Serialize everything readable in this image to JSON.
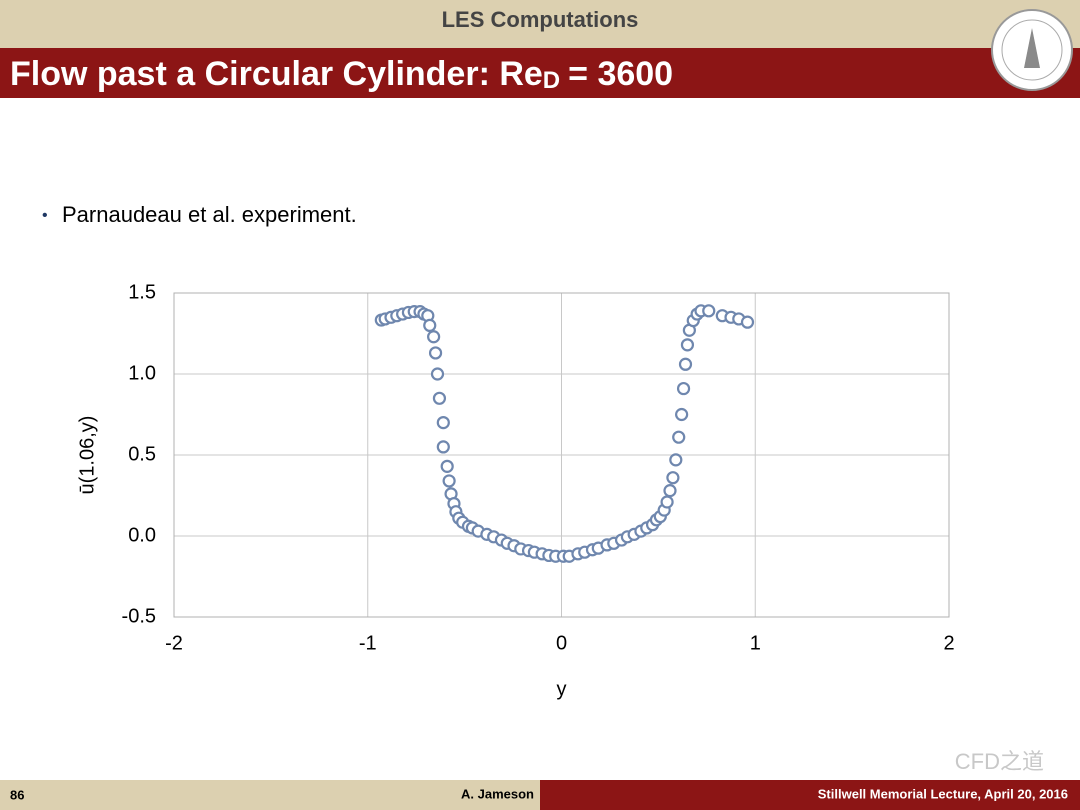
{
  "header": {
    "section": "LES Computations",
    "title_main": "Flow past a Circular Cylinder: Re",
    "title_subscript": "D",
    "title_tail": "= 3600"
  },
  "bullet": "Parnaudeau et al. experiment.",
  "footer": {
    "page": "86",
    "author": "A. Jameson",
    "event": "Stillwell Memorial Lecture, April 20, 2016"
  },
  "watermark": "CFD之道",
  "chart_data": {
    "type": "scatter",
    "x_label": "y",
    "y_label": "ū(1.06,y)",
    "color": "#6f87ae",
    "grid": true,
    "xlim": [
      -2,
      2
    ],
    "xticks": [
      -2,
      -1,
      0,
      1,
      2
    ],
    "ylim": [
      -0.5,
      1.5
    ],
    "yticks": [
      -0.5,
      {
        "value": 0,
        "label": "0.0"
      },
      0.5,
      {
        "value": 1,
        "label": "1.0"
      },
      1.5
    ],
    "x": [
      -0.93,
      -0.91,
      -0.88,
      -0.85,
      -0.82,
      -0.79,
      -0.76,
      -0.73,
      -0.71,
      -0.69,
      -0.68,
      -0.66,
      -0.65,
      -0.64,
      -0.63,
      -0.61,
      -0.61,
      -0.59,
      -0.58,
      -0.57,
      -0.555,
      -0.545,
      -0.53,
      -0.51,
      -0.48,
      -0.46,
      -0.43,
      -0.385,
      -0.35,
      -0.31,
      -0.28,
      -0.245,
      -0.21,
      -0.17,
      -0.14,
      -0.1,
      -0.065,
      -0.03,
      0.01,
      0.04,
      0.085,
      0.12,
      0.16,
      0.19,
      0.235,
      0.27,
      0.31,
      0.34,
      0.375,
      0.41,
      0.44,
      0.47,
      0.49,
      0.51,
      0.53,
      0.545,
      0.56,
      0.575,
      0.59,
      0.605,
      0.62,
      0.63,
      0.64,
      0.65,
      0.66,
      0.68,
      0.7,
      0.72,
      0.76,
      0.83,
      0.875,
      0.915,
      0.96
    ],
    "values": [
      1.333,
      1.34,
      1.35,
      1.36,
      1.37,
      1.38,
      1.385,
      1.385,
      1.37,
      1.36,
      1.3,
      1.23,
      1.13,
      1.0,
      0.85,
      0.7,
      0.55,
      0.43,
      0.34,
      0.26,
      0.2,
      0.15,
      0.11,
      0.085,
      0.06,
      0.05,
      0.03,
      0.01,
      -0.005,
      -0.025,
      -0.045,
      -0.06,
      -0.08,
      -0.09,
      -0.1,
      -0.11,
      -0.12,
      -0.125,
      -0.125,
      -0.125,
      -0.11,
      -0.1,
      -0.085,
      -0.075,
      -0.055,
      -0.045,
      -0.025,
      -0.005,
      0.01,
      0.03,
      0.05,
      0.07,
      0.1,
      0.12,
      0.16,
      0.21,
      0.28,
      0.36,
      0.47,
      0.61,
      0.75,
      0.91,
      1.06,
      1.18,
      1.27,
      1.33,
      1.37,
      1.39,
      1.39,
      1.36,
      1.35,
      1.34,
      1.32
    ]
  }
}
